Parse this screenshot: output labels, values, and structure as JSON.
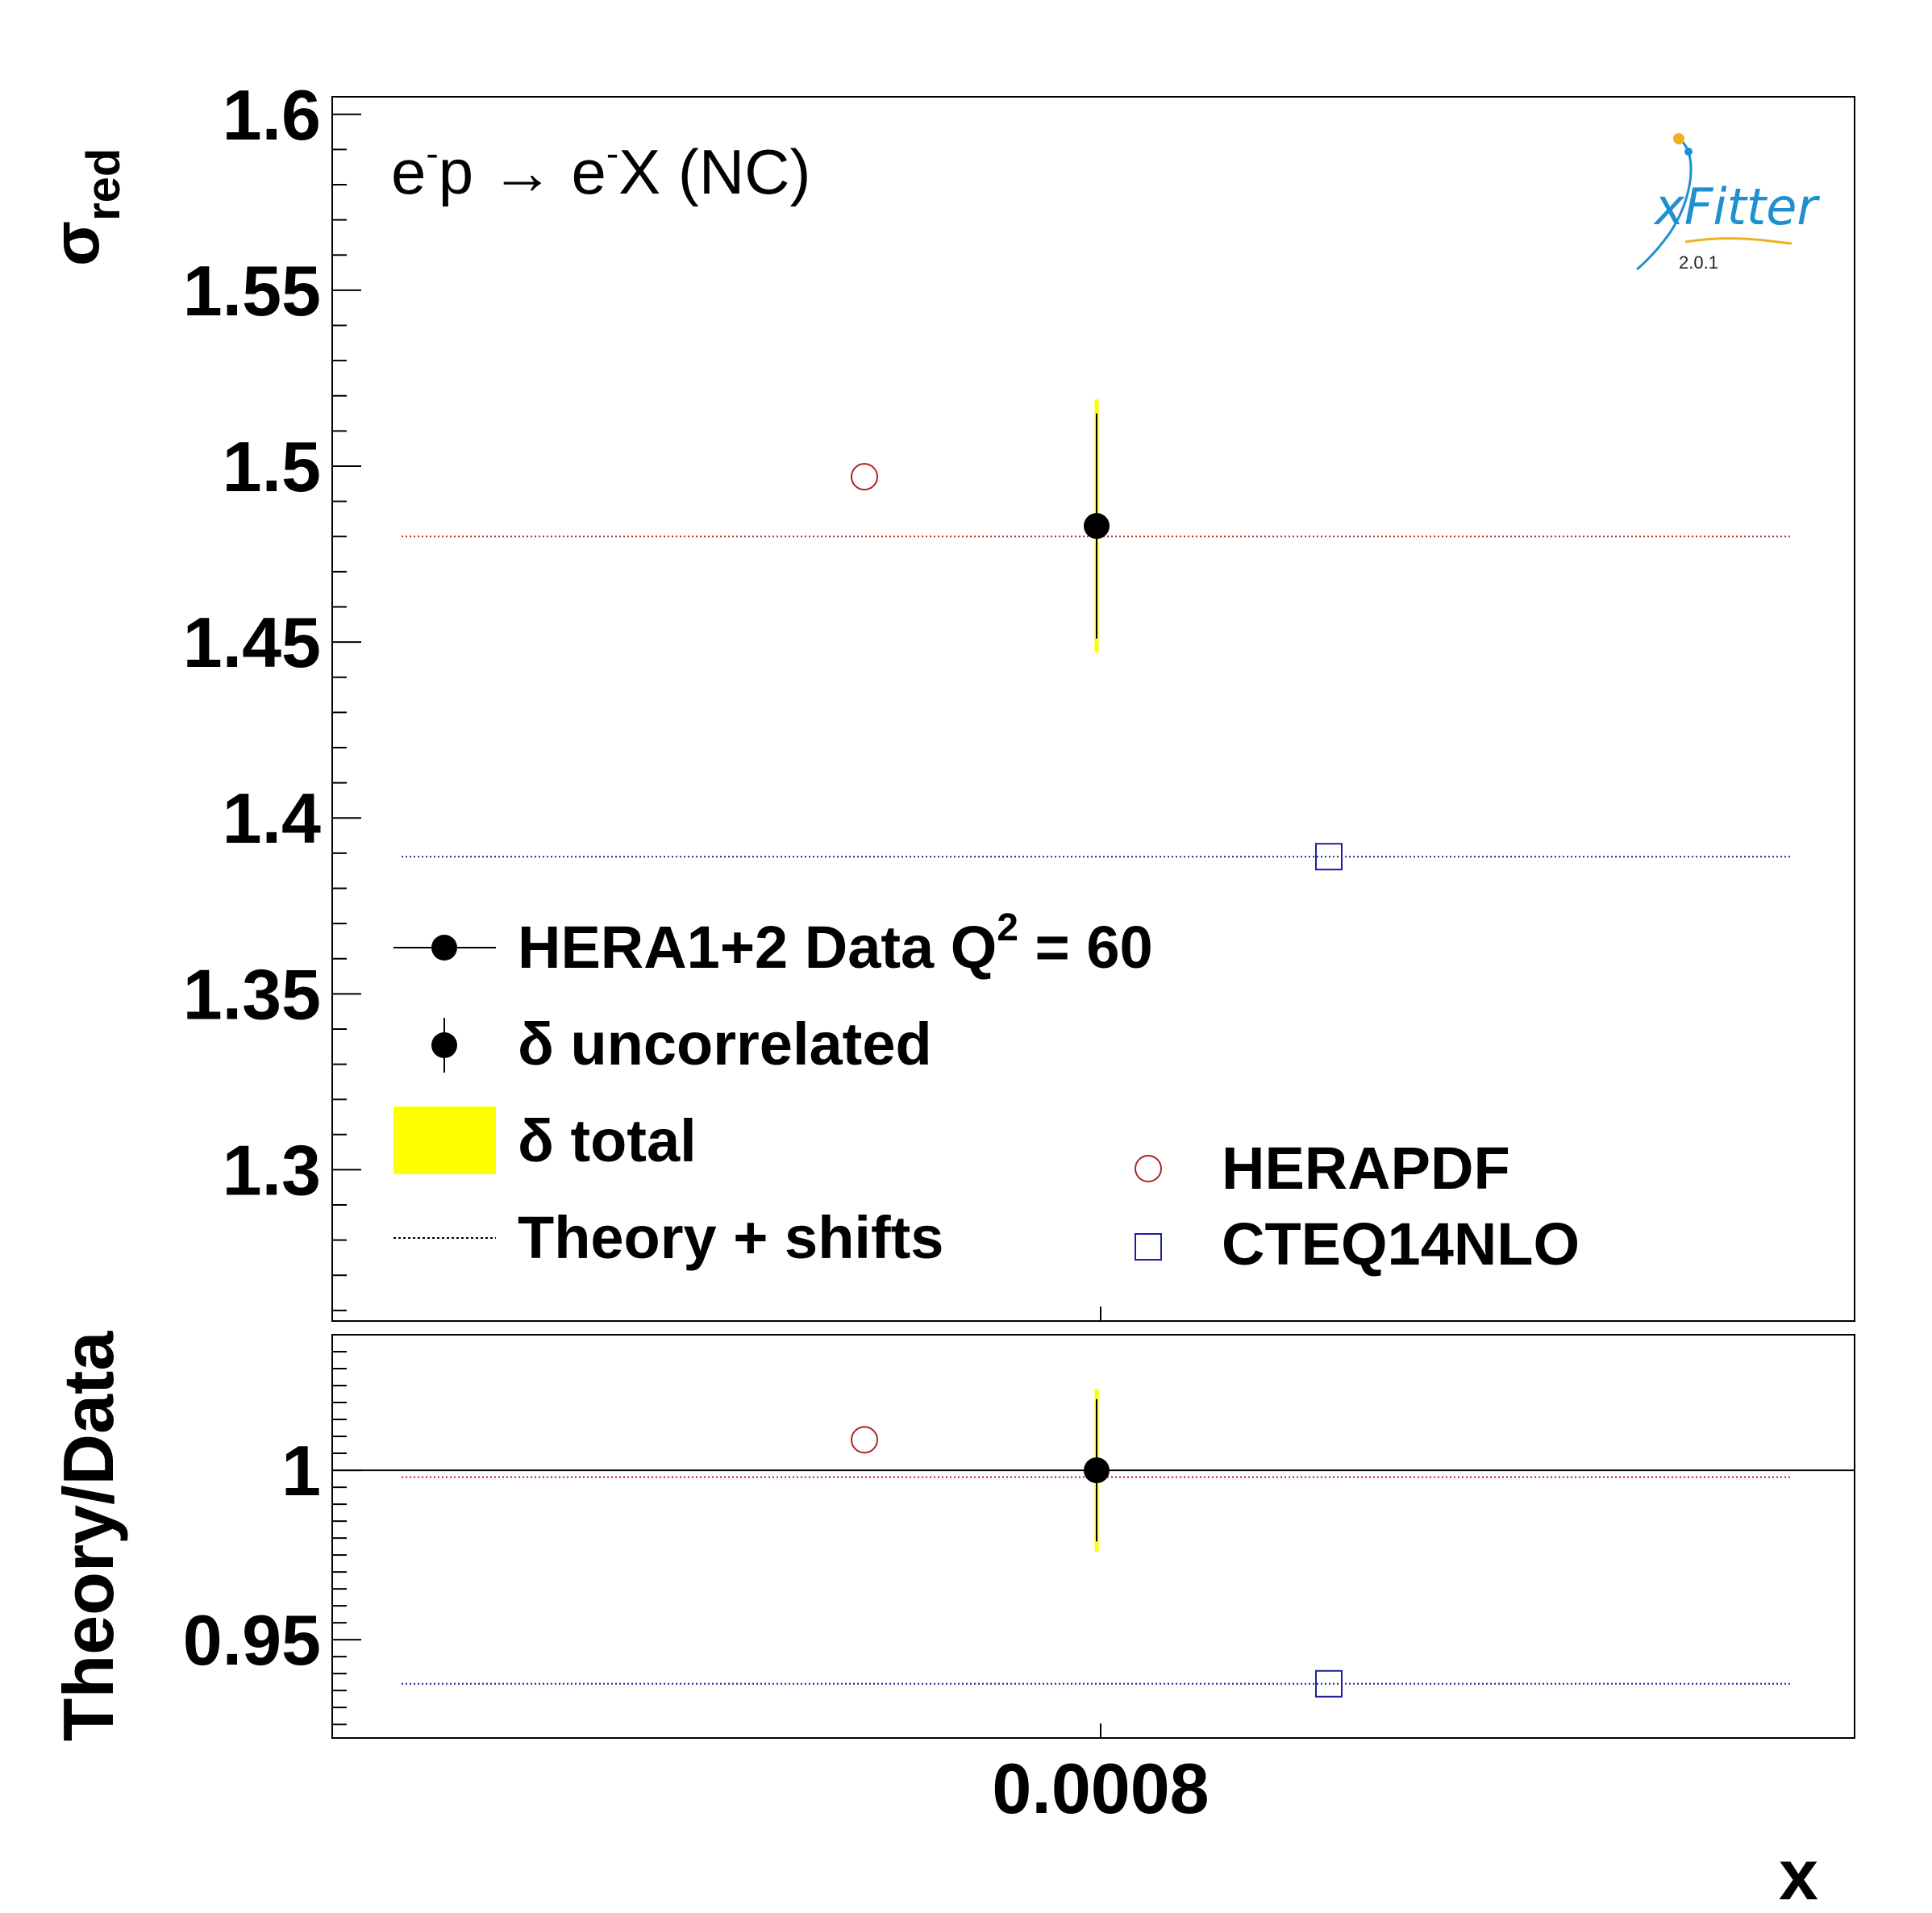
{
  "logo": {
    "name": "xFitter",
    "version": "2.0.1"
  },
  "process_label": {
    "a": "e",
    "a_sup": "-",
    "b": "p → e",
    "b_sup": "-",
    "c": "X (NC)"
  },
  "legend": {
    "data": {
      "text": "HERA1+2 Data Q",
      "sup": "2",
      "tail": " = 60"
    },
    "uncorrelated": {
      "symbol": "δ",
      "text": " uncorrelated"
    },
    "total": {
      "symbol": "δ",
      "text": " total"
    },
    "theory": "Theory + shifts",
    "herapdf": "HERAPDF",
    "cteq": "CTEQ14NLO"
  },
  "colors": {
    "data": "#000000",
    "total_band": "#ffff00",
    "herapdf": "#b22222",
    "cteq": "#1e1e9e"
  },
  "chart_data": [
    {
      "panel": "top",
      "type": "scatter",
      "ylabel": "σ",
      "ylabel_sub": "red",
      "ylim": [
        1.257,
        1.605
      ],
      "yticks": [
        "1.3",
        "1.35",
        "1.4",
        "1.45",
        "1.5",
        "1.55",
        "1.6"
      ],
      "xticks": [
        "0.0008"
      ],
      "series": [
        {
          "name": "HERA1+2 Data Q² = 60",
          "x": [
            0.0008
          ],
          "y": [
            1.483
          ],
          "unc_err": [
            0.032
          ],
          "tot_err": [
            0.036
          ]
        },
        {
          "name": "HERAPDF",
          "x": [
            0.0008
          ],
          "y": [
            1.497
          ],
          "theory_shifted": 1.48
        },
        {
          "name": "CTEQ14NLO",
          "x": [
            0.0008
          ],
          "y": [
            1.389
          ],
          "theory_shifted": 1.389
        }
      ]
    },
    {
      "panel": "bottom",
      "type": "scatter",
      "ylabel": "Theory/Data",
      "xlabel": "x",
      "ylim": [
        0.921,
        1.04
      ],
      "yticks": [
        "0.95",
        "1"
      ],
      "xticks": [
        "0.0008"
      ],
      "reference_line": 1.0,
      "series": [
        {
          "name": "Data",
          "y": [
            1.0
          ],
          "unc_err": [
            0.021
          ],
          "tot_err": [
            0.024
          ]
        },
        {
          "name": "HERAPDF",
          "y": [
            1.009
          ],
          "theory_shifted": 0.998
        },
        {
          "name": "CTEQ14NLO",
          "y": [
            0.937
          ],
          "theory_shifted": 0.937
        }
      ]
    }
  ]
}
